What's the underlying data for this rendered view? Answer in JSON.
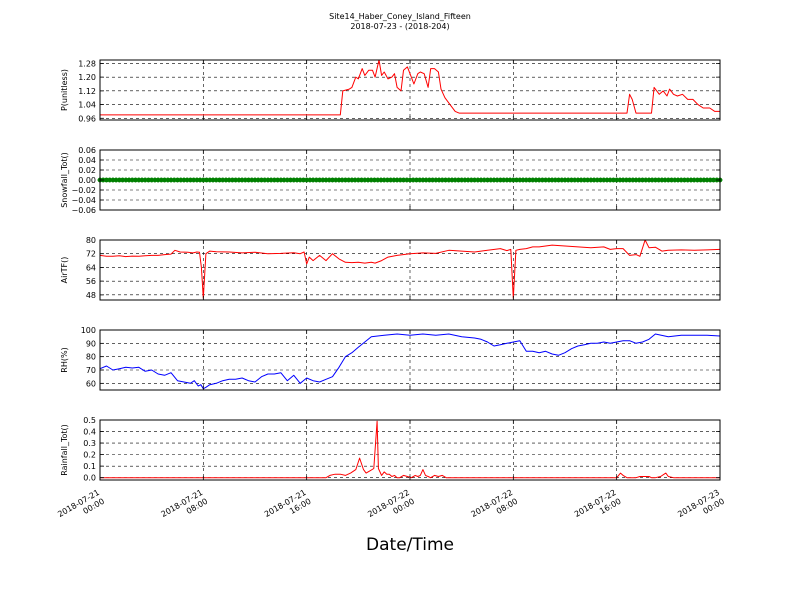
{
  "figure": {
    "title": "Site14_Haber_Coney_Island_Fifteen",
    "subtitle": "2018-07-23 - (2018-204)",
    "xlabel": "Date/Time",
    "x_ticks": [
      {
        "t": 0,
        "line1": "2018-07-21",
        "line2": "00:00"
      },
      {
        "t": 8,
        "line1": "2018-07-21",
        "line2": "08:00"
      },
      {
        "t": 16,
        "line1": "2018-07-21",
        "line2": "16:00"
      },
      {
        "t": 24,
        "line1": "2018-07-22",
        "line2": "00:00"
      },
      {
        "t": 32,
        "line1": "2018-07-22",
        "line2": "08:00"
      },
      {
        "t": 40,
        "line1": "2018-07-22",
        "line2": "16:00"
      },
      {
        "t": 48,
        "line1": "2018-07-23",
        "line2": "00:00"
      }
    ]
  },
  "chart_data": [
    {
      "type": "line",
      "ylabel": "P(unitless)",
      "ylim": [
        0.95,
        1.3
      ],
      "yticks": [
        0.96,
        1.04,
        1.12,
        1.2,
        1.28
      ],
      "tick_labels": [
        "0.96",
        "1.04",
        "1.12",
        "1.20",
        "1.28"
      ],
      "grid": true,
      "series": [
        {
          "color": "#ff0000",
          "x": [
            0,
            18.6,
            18.8,
            19.3,
            19.5,
            19.8,
            20,
            20.3,
            20.5,
            20.8,
            21.1,
            21.3,
            21.6,
            21.8,
            22,
            22.3,
            22.6,
            22.8,
            23,
            23.3,
            23.5,
            23.8,
            24.1,
            24.3,
            24.6,
            24.8,
            25.1,
            25.4,
            25.6,
            25.9,
            26.2,
            26.4,
            26.7,
            27.1,
            27.5,
            27.8,
            28.2,
            28.6,
            29,
            30,
            31,
            32,
            33,
            34,
            35,
            36,
            37,
            38,
            39,
            40,
            40.8,
            41,
            41.2,
            41.5,
            41.8,
            42.3,
            42.7,
            42.9,
            43.3,
            43.6,
            43.9,
            44.1,
            44.4,
            44.7,
            45.1,
            45.5,
            45.9,
            46.3,
            46.7,
            47.2,
            47.6,
            48
          ],
          "y": [
            0.98,
            0.98,
            1.12,
            1.13,
            1.14,
            1.2,
            1.19,
            1.25,
            1.21,
            1.24,
            1.24,
            1.2,
            1.3,
            1.21,
            1.23,
            1.19,
            1.2,
            1.22,
            1.14,
            1.12,
            1.24,
            1.26,
            1.2,
            1.16,
            1.22,
            1.23,
            1.22,
            1.14,
            1.25,
            1.25,
            1.23,
            1.13,
            1.08,
            1.04,
            1.0,
            0.99,
            0.99,
            0.99,
            0.99,
            0.99,
            0.99,
            0.99,
            0.99,
            0.99,
            0.99,
            0.99,
            0.99,
            0.99,
            0.99,
            0.99,
            0.99,
            1.1,
            1.07,
            0.99,
            0.99,
            0.99,
            0.99,
            1.14,
            1.1,
            1.12,
            1.09,
            1.13,
            1.1,
            1.09,
            1.1,
            1.07,
            1.07,
            1.04,
            1.02,
            1.02,
            1.0,
            1.0
          ]
        }
      ]
    },
    {
      "type": "scatter",
      "ylabel": "Snowfall_Tot()",
      "ylim": [
        -0.06,
        0.06
      ],
      "yticks": [
        -0.06,
        -0.04,
        -0.02,
        0.0,
        0.02,
        0.04,
        0.06
      ],
      "tick_labels": [
        "−0.06",
        "−0.04",
        "−0.02",
        "0.00",
        "0.02",
        "0.04",
        "0.06"
      ],
      "grid": true,
      "series": [
        {
          "color": "#008000",
          "x": [
            0,
            48
          ],
          "y": [
            0,
            0
          ],
          "dense": true,
          "step": 0.25
        }
      ]
    },
    {
      "type": "line",
      "ylabel": "AirTF()",
      "ylim": [
        45,
        80
      ],
      "yticks": [
        48,
        56,
        64,
        72,
        80
      ],
      "tick_labels": [
        "48",
        "56",
        "64",
        "72",
        "80"
      ],
      "grid": true,
      "series": [
        {
          "color": "#ff0000",
          "x": [
            0,
            0.5,
            1,
            1.5,
            2,
            2.5,
            3,
            3.5,
            4,
            4.5,
            5,
            5.5,
            5.8,
            6.2,
            6.8,
            7.2,
            7.5,
            7.7,
            7.85,
            8,
            8.2,
            8.5,
            9,
            10,
            11,
            12,
            13,
            14,
            15,
            15.5,
            15.8,
            16,
            16.2,
            16.5,
            17,
            17.5,
            18,
            18.5,
            19,
            19.5,
            20,
            20.5,
            21,
            21.3,
            21.8,
            22.3,
            23,
            24,
            25,
            26,
            27,
            28,
            29,
            30,
            31,
            31.5,
            31.8,
            32,
            32.2,
            32.5,
            33,
            33.5,
            34,
            35,
            36,
            37,
            38,
            39,
            39.5,
            40,
            40.5,
            41,
            41.5,
            41.8,
            42.2,
            42.5,
            43,
            43.5,
            44,
            45,
            46,
            47,
            48
          ],
          "y": [
            71,
            70.5,
            70.5,
            70.8,
            70.3,
            70.6,
            70.5,
            70.8,
            71,
            71,
            71.5,
            71.8,
            74,
            73,
            72.8,
            72.5,
            73,
            72.8,
            64,
            46,
            72,
            73.5,
            73.2,
            73,
            72.5,
            72.8,
            72,
            72.2,
            72.6,
            72,
            73,
            66,
            70,
            68,
            71,
            68,
            72,
            69,
            67,
            66.8,
            67,
            66.5,
            67,
            66.5,
            68,
            70,
            71,
            72,
            72.5,
            72.2,
            74,
            73.5,
            73,
            74,
            75,
            73.8,
            74.5,
            46,
            74,
            74.5,
            75,
            76,
            76,
            77,
            76.5,
            76,
            75.5,
            76,
            74.5,
            75,
            75,
            71,
            71.5,
            70.5,
            80,
            75.5,
            75.8,
            73.5,
            74,
            74.2,
            74,
            74.2,
            74.5
          ]
        }
      ]
    },
    {
      "type": "line",
      "ylabel": "RH(%)",
      "ylim": [
        55,
        100
      ],
      "yticks": [
        60,
        70,
        80,
        90,
        100
      ],
      "tick_labels": [
        "60",
        "70",
        "80",
        "90",
        "100"
      ],
      "grid": true,
      "series": [
        {
          "color": "#0000ff",
          "x": [
            0,
            0.5,
            1,
            1.5,
            2,
            2.5,
            3,
            3.5,
            4,
            4.5,
            5,
            5.5,
            6,
            6.5,
            7,
            7.3,
            7.6,
            7.8,
            8,
            8.2,
            8.5,
            9,
            9.5,
            10,
            10.5,
            11,
            11.5,
            12,
            12.5,
            13,
            13.5,
            14,
            14.5,
            15,
            15.5,
            16,
            16.5,
            17,
            17.5,
            18,
            18.5,
            19,
            19.5,
            20,
            20.5,
            21,
            22,
            23,
            24,
            25,
            26,
            27,
            28,
            29,
            29.5,
            30,
            30.5,
            31,
            31.5,
            32,
            32.5,
            33,
            33.5,
            34,
            34.5,
            35,
            35.5,
            36,
            36.5,
            37,
            37.5,
            38,
            38.5,
            39,
            39.5,
            40,
            40.5,
            41,
            41.5,
            42,
            42.5,
            43,
            44,
            45,
            46,
            47,
            48
          ],
          "y": [
            71,
            73,
            70,
            71,
            72,
            71.5,
            72,
            69,
            70,
            67,
            66,
            68,
            62,
            61,
            60,
            62,
            58,
            59,
            56,
            57,
            59,
            60,
            62,
            63,
            63,
            64,
            62,
            61,
            65,
            67,
            67,
            68,
            62,
            66,
            60,
            64,
            62,
            61,
            63,
            65,
            72,
            80,
            83,
            87,
            91,
            95,
            96,
            97,
            96,
            97,
            96,
            97,
            95,
            94,
            93,
            91,
            88,
            89,
            90,
            91,
            92,
            84,
            84,
            83,
            84,
            82,
            81,
            83,
            86,
            88,
            89,
            90,
            90,
            91,
            90,
            91,
            92,
            92,
            90,
            91,
            93,
            97,
            95,
            96,
            96,
            96,
            95.5
          ]
        }
      ]
    },
    {
      "type": "line",
      "ylabel": "Rainfall_Tot()",
      "ylim": [
        -0.02,
        0.5
      ],
      "yticks": [
        0.0,
        0.1,
        0.2,
        0.3,
        0.4,
        0.5
      ],
      "tick_labels": [
        "0.0",
        "0.1",
        "0.2",
        "0.3",
        "0.4",
        "0.5"
      ],
      "grid": true,
      "series": [
        {
          "color": "#ff0000",
          "x": [
            0,
            17.5,
            17.8,
            18.2,
            18.6,
            19,
            19.4,
            19.8,
            20.1,
            20.4,
            20.6,
            20.9,
            21.2,
            21.45,
            21.55,
            21.8,
            22,
            22.2,
            22.4,
            22.6,
            22.8,
            23,
            23.2,
            23.5,
            23.8,
            24.1,
            24.4,
            24.6,
            24.8,
            25,
            25.2,
            25.4,
            25.6,
            25.9,
            26.2,
            26.5,
            26.8,
            27.2,
            28,
            30,
            32,
            34,
            36,
            38,
            39.5,
            40,
            40.3,
            40.5,
            40.8,
            41,
            41.5,
            41.8,
            42.5,
            42.7,
            43,
            43.4,
            43.8,
            44,
            44.4,
            45,
            46,
            48
          ],
          "y": [
            0,
            0,
            0.02,
            0.03,
            0.03,
            0.02,
            0.04,
            0.07,
            0.17,
            0.07,
            0.04,
            0.06,
            0.08,
            0.49,
            0.08,
            0.02,
            0.05,
            0.03,
            0.03,
            0.01,
            0.02,
            0,
            0,
            0.02,
            0.01,
            0,
            0.02,
            0.01,
            0.02,
            0.07,
            0.02,
            0.01,
            0,
            0.02,
            0.01,
            0.02,
            0,
            0,
            0,
            0,
            0,
            0,
            0,
            0,
            0,
            0,
            0.04,
            0.02,
            0,
            0,
            0,
            0.01,
            0.01,
            0,
            0,
            0.01,
            0.04,
            0.01,
            0,
            0,
            0,
            0
          ]
        }
      ]
    }
  ]
}
